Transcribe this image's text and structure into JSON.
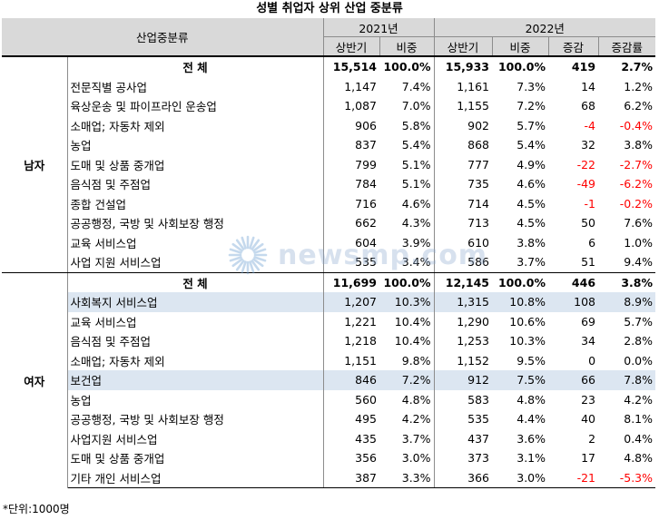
{
  "title": "성별 취업자 상위 산업 중분류",
  "header": {
    "category": "산업중분류",
    "year_2021": "2021년",
    "year_2022": "2022년",
    "col_half_2021": "상반기",
    "col_share_2021": "비중",
    "col_half_2022": "상반기",
    "col_share_2022": "비중",
    "col_change": "증감",
    "col_change_rate": "증감률"
  },
  "male": {
    "label": "남자",
    "total": {
      "name": "전 체",
      "v2021": "15,514",
      "s2021": "100.0%",
      "v2022": "15,933",
      "s2022": "100.0%",
      "chg": "419",
      "rate": "2.7%"
    },
    "rows": [
      {
        "name": "전문직별 공사업",
        "v2021": "1,147",
        "s2021": "7.4%",
        "v2022": "1,161",
        "s2022": "7.3%",
        "chg": "14",
        "rate": "1.2%"
      },
      {
        "name": "육상운송 및 파이프라인 운송업",
        "v2021": "1,087",
        "s2021": "7.0%",
        "v2022": "1,155",
        "s2022": "7.2%",
        "chg": "68",
        "rate": "6.2%"
      },
      {
        "name": "소매업; 자동차 제외",
        "v2021": "906",
        "s2021": "5.8%",
        "v2022": "902",
        "s2022": "5.7%",
        "chg": "-4",
        "rate": "-0.4%",
        "neg": true
      },
      {
        "name": "농업",
        "v2021": "837",
        "s2021": "5.4%",
        "v2022": "868",
        "s2022": "5.4%",
        "chg": "32",
        "rate": "3.8%"
      },
      {
        "name": "도매 및 상품 중개업",
        "v2021": "799",
        "s2021": "5.1%",
        "v2022": "777",
        "s2022": "4.9%",
        "chg": "-22",
        "rate": "-2.7%",
        "neg": true
      },
      {
        "name": "음식점 및 주점업",
        "v2021": "784",
        "s2021": "5.1%",
        "v2022": "735",
        "s2022": "4.6%",
        "chg": "-49",
        "rate": "-6.2%",
        "neg": true
      },
      {
        "name": "종합 건설업",
        "v2021": "716",
        "s2021": "4.6%",
        "v2022": "714",
        "s2022": "4.5%",
        "chg": "-1",
        "rate": "-0.2%",
        "neg": true
      },
      {
        "name": "공공행정, 국방 및 사회보장 행정",
        "v2021": "662",
        "s2021": "4.3%",
        "v2022": "713",
        "s2022": "4.5%",
        "chg": "50",
        "rate": "7.6%"
      },
      {
        "name": "교육 서비스업",
        "v2021": "604",
        "s2021": "3.9%",
        "v2022": "610",
        "s2022": "3.8%",
        "chg": "6",
        "rate": "1.0%"
      },
      {
        "name": "사업 지원 서비스업",
        "v2021": "535",
        "s2021": "3.4%",
        "v2022": "586",
        "s2022": "3.7%",
        "chg": "51",
        "rate": "9.4%"
      }
    ]
  },
  "female": {
    "label": "여자",
    "total": {
      "name": "전 체",
      "v2021": "11,699",
      "s2021": "100.0%",
      "v2022": "12,145",
      "s2022": "100.0%",
      "chg": "446",
      "rate": "3.8%"
    },
    "rows": [
      {
        "name": "사회복지 서비스업",
        "v2021": "1,207",
        "s2021": "10.3%",
        "v2022": "1,315",
        "s2022": "10.8%",
        "chg": "108",
        "rate": "8.9%",
        "hl": true
      },
      {
        "name": "교육 서비스업",
        "v2021": "1,221",
        "s2021": "10.4%",
        "v2022": "1,290",
        "s2022": "10.6%",
        "chg": "69",
        "rate": "5.7%"
      },
      {
        "name": "음식점 및 주점업",
        "v2021": "1,218",
        "s2021": "10.4%",
        "v2022": "1,253",
        "s2022": "10.3%",
        "chg": "34",
        "rate": "2.8%"
      },
      {
        "name": "소매업; 자동차 제외",
        "v2021": "1,151",
        "s2021": "9.8%",
        "v2022": "1,152",
        "s2022": "9.5%",
        "chg": "0",
        "rate": "0.0%"
      },
      {
        "name": "보건업",
        "v2021": "846",
        "s2021": "7.2%",
        "v2022": "912",
        "s2022": "7.5%",
        "chg": "66",
        "rate": "7.8%",
        "hl": true
      },
      {
        "name": "농업",
        "v2021": "560",
        "s2021": "4.8%",
        "v2022": "583",
        "s2022": "4.8%",
        "chg": "23",
        "rate": "4.2%"
      },
      {
        "name": "공공행정, 국방 및 사회보장 행정",
        "v2021": "495",
        "s2021": "4.2%",
        "v2022": "535",
        "s2022": "4.4%",
        "chg": "40",
        "rate": "8.1%"
      },
      {
        "name": "사업지원 서비스업",
        "v2021": "435",
        "s2021": "3.7%",
        "v2022": "437",
        "s2022": "3.6%",
        "chg": "2",
        "rate": "0.4%"
      },
      {
        "name": "도매 및 상품 중개업",
        "v2021": "356",
        "s2021": "3.0%",
        "v2022": "373",
        "s2022": "3.1%",
        "chg": "17",
        "rate": "4.8%"
      },
      {
        "name": "기타 개인 서비스업",
        "v2021": "387",
        "s2021": "3.3%",
        "v2022": "366",
        "s2022": "3.0%",
        "chg": "-21",
        "rate": "-5.3%",
        "neg": true
      }
    ]
  },
  "footer": "*단위:1000명",
  "watermark": {
    "text": "newsmp.com",
    "icon": "newsmp-sunburst-logo-icon"
  },
  "colors": {
    "header_bg": "#d9d9d9",
    "highlight_bg": "#dce6f1",
    "negative": "#ff0000"
  }
}
